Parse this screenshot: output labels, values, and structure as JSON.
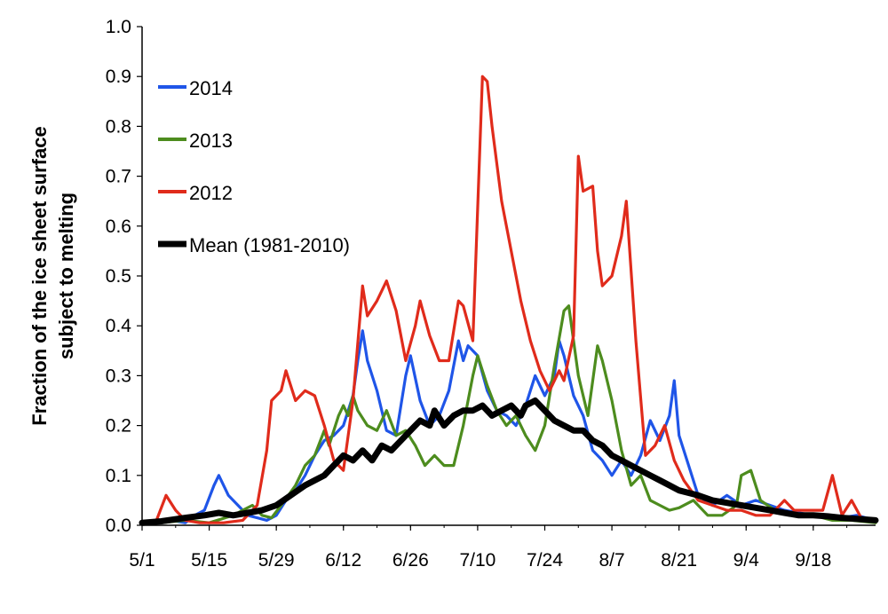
{
  "chart_data": {
    "type": "line",
    "title": "",
    "xlabel": "",
    "ylabel": [
      "Fraction of the ice sheet surface",
      "subject to  melting"
    ],
    "x_start": "5/1",
    "x_end": "10/1",
    "xlim": [
      "5/1",
      "10/1"
    ],
    "ylim": [
      0,
      1
    ],
    "x_ticks": [
      "5/1",
      "5/15",
      "5/29",
      "6/12",
      "6/26",
      "7/10",
      "7/24",
      "8/7",
      "8/21",
      "9/4",
      "9/18"
    ],
    "y_ticks": [
      "0.0",
      "0.1",
      "0.2",
      "0.3",
      "0.4",
      "0.5",
      "0.6",
      "0.7",
      "0.8",
      "0.9",
      "1.0"
    ],
    "grid": false,
    "legend_position": "top-left",
    "series": [
      {
        "name": "2014",
        "color": "#1f55e8",
        "points": [
          [
            "5/1",
            0.005
          ],
          [
            "5/4",
            0.01
          ],
          [
            "5/7",
            0.01
          ],
          [
            "5/10",
            0.005
          ],
          [
            "5/12",
            0.02
          ],
          [
            "5/14",
            0.03
          ],
          [
            "5/16",
            0.08
          ],
          [
            "5/17",
            0.1
          ],
          [
            "5/19",
            0.06
          ],
          [
            "5/21",
            0.04
          ],
          [
            "5/23",
            0.02
          ],
          [
            "5/25",
            0.015
          ],
          [
            "5/27",
            0.01
          ],
          [
            "5/29",
            0.02
          ],
          [
            "5/31",
            0.05
          ],
          [
            "6/2",
            0.07
          ],
          [
            "6/4",
            0.1
          ],
          [
            "6/6",
            0.14
          ],
          [
            "6/8",
            0.17
          ],
          [
            "6/10",
            0.18
          ],
          [
            "6/12",
            0.2
          ],
          [
            "6/14",
            0.26
          ],
          [
            "6/15",
            0.33
          ],
          [
            "6/16",
            0.39
          ],
          [
            "6/17",
            0.33
          ],
          [
            "6/19",
            0.27
          ],
          [
            "6/21",
            0.19
          ],
          [
            "6/23",
            0.18
          ],
          [
            "6/25",
            0.3
          ],
          [
            "6/26",
            0.34
          ],
          [
            "6/28",
            0.25
          ],
          [
            "6/30",
            0.2
          ],
          [
            "7/2",
            0.22
          ],
          [
            "7/4",
            0.27
          ],
          [
            "7/6",
            0.37
          ],
          [
            "7/7",
            0.33
          ],
          [
            "7/8",
            0.36
          ],
          [
            "7/10",
            0.34
          ],
          [
            "7/12",
            0.27
          ],
          [
            "7/14",
            0.23
          ],
          [
            "7/16",
            0.22
          ],
          [
            "7/18",
            0.2
          ],
          [
            "7/20",
            0.24
          ],
          [
            "7/22",
            0.3
          ],
          [
            "7/24",
            0.26
          ],
          [
            "7/26",
            0.3
          ],
          [
            "7/27",
            0.37
          ],
          [
            "7/28",
            0.34
          ],
          [
            "7/30",
            0.26
          ],
          [
            "8/1",
            0.22
          ],
          [
            "8/3",
            0.15
          ],
          [
            "8/5",
            0.13
          ],
          [
            "8/7",
            0.1
          ],
          [
            "8/9",
            0.13
          ],
          [
            "8/11",
            0.1
          ],
          [
            "8/13",
            0.14
          ],
          [
            "8/15",
            0.21
          ],
          [
            "8/17",
            0.17
          ],
          [
            "8/19",
            0.22
          ],
          [
            "8/20",
            0.29
          ],
          [
            "8/21",
            0.18
          ],
          [
            "8/23",
            0.12
          ],
          [
            "8/25",
            0.06
          ],
          [
            "8/28",
            0.04
          ],
          [
            "8/31",
            0.06
          ],
          [
            "9/3",
            0.04
          ],
          [
            "9/6",
            0.05
          ],
          [
            "9/9",
            0.04
          ],
          [
            "9/12",
            0.03
          ],
          [
            "9/15",
            0.025
          ],
          [
            "9/18",
            0.02
          ],
          [
            "9/21",
            0.02
          ],
          [
            "9/24",
            0.015
          ],
          [
            "9/27",
            0.02
          ],
          [
            "10/1",
            0.01
          ]
        ]
      },
      {
        "name": "2013",
        "color": "#4d8c1e",
        "points": [
          [
            "5/1",
            0.005
          ],
          [
            "5/5",
            0.005
          ],
          [
            "5/10",
            0.01
          ],
          [
            "5/15",
            0.005
          ],
          [
            "5/20",
            0.02
          ],
          [
            "5/22",
            0.03
          ],
          [
            "5/24",
            0.04
          ],
          [
            "5/26",
            0.02
          ],
          [
            "5/28",
            0.015
          ],
          [
            "5/30",
            0.04
          ],
          [
            "6/2",
            0.08
          ],
          [
            "6/4",
            0.12
          ],
          [
            "6/6",
            0.14
          ],
          [
            "6/8",
            0.19
          ],
          [
            "6/9",
            0.16
          ],
          [
            "6/11",
            0.22
          ],
          [
            "6/12",
            0.24
          ],
          [
            "6/13",
            0.22
          ],
          [
            "6/14",
            0.26
          ],
          [
            "6/15",
            0.23
          ],
          [
            "6/17",
            0.2
          ],
          [
            "6/19",
            0.19
          ],
          [
            "6/21",
            0.23
          ],
          [
            "6/23",
            0.18
          ],
          [
            "6/25",
            0.19
          ],
          [
            "6/27",
            0.16
          ],
          [
            "6/29",
            0.12
          ],
          [
            "7/1",
            0.14
          ],
          [
            "7/3",
            0.12
          ],
          [
            "7/5",
            0.12
          ],
          [
            "7/7",
            0.2
          ],
          [
            "7/9",
            0.3
          ],
          [
            "7/10",
            0.34
          ],
          [
            "7/12",
            0.28
          ],
          [
            "7/14",
            0.23
          ],
          [
            "7/16",
            0.2
          ],
          [
            "7/18",
            0.22
          ],
          [
            "7/20",
            0.18
          ],
          [
            "7/22",
            0.15
          ],
          [
            "7/24",
            0.2
          ],
          [
            "7/26",
            0.32
          ],
          [
            "7/28",
            0.43
          ],
          [
            "7/29",
            0.44
          ],
          [
            "7/31",
            0.3
          ],
          [
            "8/2",
            0.22
          ],
          [
            "8/4",
            0.36
          ],
          [
            "8/5",
            0.33
          ],
          [
            "8/7",
            0.25
          ],
          [
            "8/9",
            0.15
          ],
          [
            "8/11",
            0.08
          ],
          [
            "8/13",
            0.1
          ],
          [
            "8/15",
            0.05
          ],
          [
            "8/17",
            0.04
          ],
          [
            "8/19",
            0.03
          ],
          [
            "8/21",
            0.035
          ],
          [
            "8/24",
            0.05
          ],
          [
            "8/27",
            0.02
          ],
          [
            "8/30",
            0.02
          ],
          [
            "9/2",
            0.04
          ],
          [
            "9/3",
            0.1
          ],
          [
            "9/5",
            0.11
          ],
          [
            "9/7",
            0.05
          ],
          [
            "9/10",
            0.03
          ],
          [
            "9/14",
            0.02
          ],
          [
            "9/18",
            0.02
          ],
          [
            "9/22",
            0.01
          ],
          [
            "9/26",
            0.01
          ],
          [
            "10/1",
            0.005
          ]
        ]
      },
      {
        "name": "2012",
        "color": "#e02b1b",
        "points": [
          [
            "5/1",
            0.005
          ],
          [
            "5/4",
            0.01
          ],
          [
            "5/6",
            0.06
          ],
          [
            "5/8",
            0.03
          ],
          [
            "5/10",
            0.01
          ],
          [
            "5/13",
            0.005
          ],
          [
            "5/18",
            0.005
          ],
          [
            "5/22",
            0.01
          ],
          [
            "5/25",
            0.04
          ],
          [
            "5/27",
            0.15
          ],
          [
            "5/28",
            0.25
          ],
          [
            "5/30",
            0.27
          ],
          [
            "5/31",
            0.31
          ],
          [
            "6/2",
            0.25
          ],
          [
            "6/4",
            0.27
          ],
          [
            "6/6",
            0.26
          ],
          [
            "6/8",
            0.2
          ],
          [
            "6/10",
            0.13
          ],
          [
            "6/12",
            0.11
          ],
          [
            "6/14",
            0.25
          ],
          [
            "6/16",
            0.48
          ],
          [
            "6/17",
            0.42
          ],
          [
            "6/19",
            0.45
          ],
          [
            "6/21",
            0.49
          ],
          [
            "6/23",
            0.43
          ],
          [
            "6/25",
            0.33
          ],
          [
            "6/27",
            0.4
          ],
          [
            "6/28",
            0.45
          ],
          [
            "6/30",
            0.38
          ],
          [
            "7/2",
            0.33
          ],
          [
            "7/4",
            0.33
          ],
          [
            "7/6",
            0.45
          ],
          [
            "7/7",
            0.44
          ],
          [
            "7/9",
            0.37
          ],
          [
            "7/11",
            0.9
          ],
          [
            "7/12",
            0.89
          ],
          [
            "7/13",
            0.8
          ],
          [
            "7/15",
            0.65
          ],
          [
            "7/17",
            0.55
          ],
          [
            "7/19",
            0.45
          ],
          [
            "7/21",
            0.37
          ],
          [
            "7/23",
            0.31
          ],
          [
            "7/25",
            0.27
          ],
          [
            "7/27",
            0.31
          ],
          [
            "7/28",
            0.29
          ],
          [
            "7/30",
            0.38
          ],
          [
            "7/31",
            0.74
          ],
          [
            "8/1",
            0.67
          ],
          [
            "8/3",
            0.68
          ],
          [
            "8/4",
            0.55
          ],
          [
            "8/5",
            0.48
          ],
          [
            "8/7",
            0.5
          ],
          [
            "8/9",
            0.58
          ],
          [
            "8/10",
            0.65
          ],
          [
            "8/12",
            0.37
          ],
          [
            "8/14",
            0.14
          ],
          [
            "8/16",
            0.16
          ],
          [
            "8/18",
            0.2
          ],
          [
            "8/20",
            0.13
          ],
          [
            "8/22",
            0.09
          ],
          [
            "8/25",
            0.05
          ],
          [
            "8/28",
            0.04
          ],
          [
            "8/31",
            0.03
          ],
          [
            "9/3",
            0.03
          ],
          [
            "9/6",
            0.02
          ],
          [
            "9/9",
            0.02
          ],
          [
            "9/12",
            0.05
          ],
          [
            "9/14",
            0.03
          ],
          [
            "9/17",
            0.03
          ],
          [
            "9/20",
            0.03
          ],
          [
            "9/22",
            0.1
          ],
          [
            "9/24",
            0.02
          ],
          [
            "9/26",
            0.05
          ],
          [
            "9/28",
            0.015
          ],
          [
            "10/1",
            0.01
          ]
        ]
      },
      {
        "name": "Mean (1981-2010)",
        "color": "#000000",
        "points": [
          [
            "5/1",
            0.005
          ],
          [
            "5/5",
            0.008
          ],
          [
            "5/10",
            0.015
          ],
          [
            "5/14",
            0.02
          ],
          [
            "5/17",
            0.025
          ],
          [
            "5/20",
            0.02
          ],
          [
            "5/23",
            0.025
          ],
          [
            "5/26",
            0.03
          ],
          [
            "5/29",
            0.04
          ],
          [
            "6/1",
            0.06
          ],
          [
            "6/4",
            0.08
          ],
          [
            "6/6",
            0.09
          ],
          [
            "6/8",
            0.1
          ],
          [
            "6/10",
            0.12
          ],
          [
            "6/12",
            0.14
          ],
          [
            "6/14",
            0.13
          ],
          [
            "6/16",
            0.15
          ],
          [
            "6/18",
            0.13
          ],
          [
            "6/20",
            0.16
          ],
          [
            "6/22",
            0.15
          ],
          [
            "6/24",
            0.17
          ],
          [
            "6/26",
            0.19
          ],
          [
            "6/28",
            0.21
          ],
          [
            "6/30",
            0.2
          ],
          [
            "7/1",
            0.23
          ],
          [
            "7/3",
            0.2
          ],
          [
            "7/5",
            0.22
          ],
          [
            "7/7",
            0.23
          ],
          [
            "7/9",
            0.23
          ],
          [
            "7/11",
            0.24
          ],
          [
            "7/13",
            0.22
          ],
          [
            "7/15",
            0.23
          ],
          [
            "7/17",
            0.24
          ],
          [
            "7/19",
            0.22
          ],
          [
            "7/20",
            0.24
          ],
          [
            "7/22",
            0.25
          ],
          [
            "7/24",
            0.23
          ],
          [
            "7/26",
            0.21
          ],
          [
            "7/28",
            0.2
          ],
          [
            "7/30",
            0.19
          ],
          [
            "8/1",
            0.19
          ],
          [
            "8/3",
            0.17
          ],
          [
            "8/5",
            0.16
          ],
          [
            "8/7",
            0.14
          ],
          [
            "8/9",
            0.13
          ],
          [
            "8/11",
            0.12
          ],
          [
            "8/13",
            0.11
          ],
          [
            "8/15",
            0.1
          ],
          [
            "8/17",
            0.09
          ],
          [
            "8/19",
            0.08
          ],
          [
            "8/21",
            0.07
          ],
          [
            "8/23",
            0.065
          ],
          [
            "8/25",
            0.06
          ],
          [
            "8/28",
            0.05
          ],
          [
            "8/31",
            0.045
          ],
          [
            "9/3",
            0.04
          ],
          [
            "9/6",
            0.035
          ],
          [
            "9/9",
            0.03
          ],
          [
            "9/12",
            0.025
          ],
          [
            "9/15",
            0.02
          ],
          [
            "9/18",
            0.02
          ],
          [
            "9/21",
            0.018
          ],
          [
            "9/24",
            0.015
          ],
          [
            "9/27",
            0.013
          ],
          [
            "10/1",
            0.01
          ]
        ]
      }
    ]
  }
}
